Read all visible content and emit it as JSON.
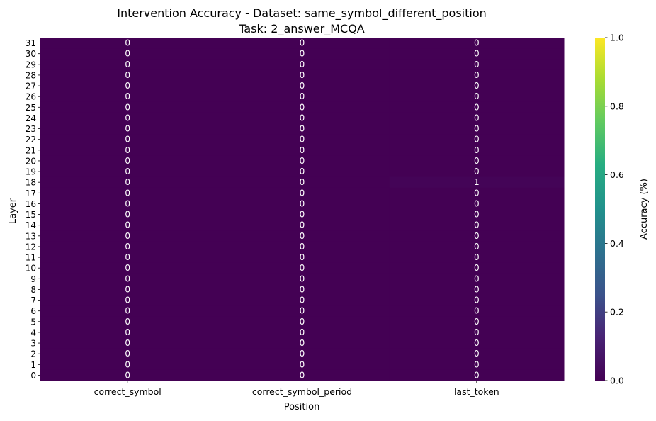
{
  "chart_data": {
    "type": "heatmap",
    "title": "Intervention Accuracy - Dataset: same_symbol_different_position",
    "subtitle": "Task: 2_answer_MCQA",
    "xlabel": "Position",
    "ylabel": "Layer",
    "x_categories": [
      "correct_symbol",
      "correct_symbol_period",
      "last_token"
    ],
    "y_categories": [
      31,
      30,
      29,
      28,
      27,
      26,
      25,
      24,
      23,
      22,
      21,
      20,
      19,
      18,
      17,
      16,
      15,
      14,
      13,
      12,
      11,
      10,
      9,
      8,
      7,
      6,
      5,
      4,
      3,
      2,
      1,
      0
    ],
    "values": [
      [
        0,
        0,
        0
      ],
      [
        0,
        0,
        0
      ],
      [
        0,
        0,
        0
      ],
      [
        0,
        0,
        0
      ],
      [
        0,
        0,
        0
      ],
      [
        0,
        0,
        0
      ],
      [
        0,
        0,
        0
      ],
      [
        0,
        0,
        0
      ],
      [
        0,
        0,
        0
      ],
      [
        0,
        0,
        0
      ],
      [
        0,
        0,
        0
      ],
      [
        0,
        0,
        0
      ],
      [
        0,
        0,
        0
      ],
      [
        0,
        0,
        0.01
      ],
      [
        0,
        0,
        0
      ],
      [
        0,
        0,
        0
      ],
      [
        0,
        0,
        0
      ],
      [
        0,
        0,
        0
      ],
      [
        0,
        0,
        0
      ],
      [
        0,
        0,
        0
      ],
      [
        0,
        0,
        0
      ],
      [
        0,
        0,
        0
      ],
      [
        0,
        0,
        0
      ],
      [
        0,
        0,
        0
      ],
      [
        0,
        0,
        0
      ],
      [
        0,
        0,
        0
      ],
      [
        0,
        0,
        0
      ],
      [
        0,
        0,
        0
      ],
      [
        0,
        0,
        0
      ],
      [
        0,
        0,
        0
      ],
      [
        0,
        0,
        0
      ],
      [
        0,
        0,
        0
      ]
    ],
    "annotations": [
      [
        "0",
        "0",
        "0"
      ],
      [
        "0",
        "0",
        "0"
      ],
      [
        "0",
        "0",
        "0"
      ],
      [
        "0",
        "0",
        "0"
      ],
      [
        "0",
        "0",
        "0"
      ],
      [
        "0",
        "0",
        "0"
      ],
      [
        "0",
        "0",
        "0"
      ],
      [
        "0",
        "0",
        "0"
      ],
      [
        "0",
        "0",
        "0"
      ],
      [
        "0",
        "0",
        "0"
      ],
      [
        "0",
        "0",
        "0"
      ],
      [
        "0",
        "0",
        "0"
      ],
      [
        "0",
        "0",
        "0"
      ],
      [
        "0",
        "0",
        "1"
      ],
      [
        "0",
        "0",
        "0"
      ],
      [
        "0",
        "0",
        "0"
      ],
      [
        "0",
        "0",
        "0"
      ],
      [
        "0",
        "0",
        "0"
      ],
      [
        "0",
        "0",
        "0"
      ],
      [
        "0",
        "0",
        "0"
      ],
      [
        "0",
        "0",
        "0"
      ],
      [
        "0",
        "0",
        "0"
      ],
      [
        "0",
        "0",
        "0"
      ],
      [
        "0",
        "0",
        "0"
      ],
      [
        "0",
        "0",
        "0"
      ],
      [
        "0",
        "0",
        "0"
      ],
      [
        "0",
        "0",
        "0"
      ],
      [
        "0",
        "0",
        "0"
      ],
      [
        "0",
        "0",
        "0"
      ],
      [
        "0",
        "0",
        "0"
      ],
      [
        "0",
        "0",
        "0"
      ],
      [
        "0",
        "0",
        "0"
      ]
    ],
    "colorbar": {
      "label": "Accuracy (%)",
      "range": [
        0.0,
        1.0
      ],
      "ticks": [
        "0.0",
        "0.2",
        "0.4",
        "0.6",
        "0.8",
        "1.0"
      ],
      "colormap": "viridis"
    },
    "annotation_color": "#ffffff",
    "grid": false
  }
}
